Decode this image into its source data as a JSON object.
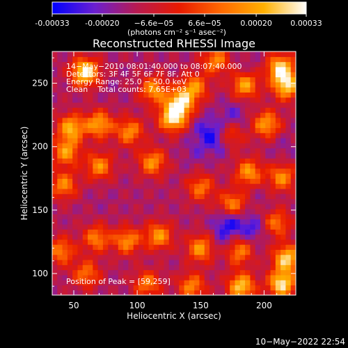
{
  "colorbar": {
    "tick_labels": [
      "-0.00033",
      "-0.00020",
      "−6.6e−05",
      "6.6e−05",
      "0.00020",
      "0.00033"
    ],
    "tick_values": [
      -0.00033,
      -0.0002,
      -6.6e-05,
      6.6e-05,
      0.0002,
      0.00033
    ],
    "range": [
      -0.00033,
      0.00033
    ],
    "units_label": "(photons cm⁻² s⁻¹ asec⁻²)",
    "colors": [
      "#0000ff",
      "#6a1fd0",
      "#b81a50",
      "#e81a00",
      "#ff6a00",
      "#ffb000",
      "#ffffff"
    ]
  },
  "chart_data": {
    "type": "heatmap",
    "title": "Reconstructed RHESSI Image",
    "xlabel": "Heliocentric X (arcsec)",
    "ylabel": "Heliocentric Y (arcsec)",
    "xlim": [
      33,
      225
    ],
    "ylim": [
      83,
      275
    ],
    "x_ticks": [
      50,
      100,
      150,
      200
    ],
    "y_ticks": [
      100,
      150,
      200,
      250
    ],
    "annotations": [
      "14−May−2010 08:01:40.000 to 08:07:40.000",
      "Detectors: 3F 4F 5F 6F 7F 8F, Att 0",
      "Energy Range: 25.0 − 50.0 keV",
      "Clean    Total counts: 7.65E+03"
    ],
    "peak_label": "Position of Peak = [59,259]",
    "peak": [
      59,
      259
    ],
    "hotspots": [
      {
        "x": 59,
        "y": 259,
        "v": 0.00033
      },
      {
        "x": 128,
        "y": 223,
        "v": 0.0003
      },
      {
        "x": 134,
        "y": 235,
        "v": 0.00026
      },
      {
        "x": 113,
        "y": 245,
        "v": 0.00018
      },
      {
        "x": 145,
        "y": 247,
        "v": 0.00016
      },
      {
        "x": 185,
        "y": 249,
        "v": 0.0002
      },
      {
        "x": 213,
        "y": 262,
        "v": 0.00028
      },
      {
        "x": 218,
        "y": 248,
        "v": 0.00025
      },
      {
        "x": 162,
        "y": 268,
        "v": 0.00015
      },
      {
        "x": 48,
        "y": 215,
        "v": 0.00022
      },
      {
        "x": 70,
        "y": 218,
        "v": 0.0002
      },
      {
        "x": 94,
        "y": 212,
        "v": 0.00016
      },
      {
        "x": 44,
        "y": 196,
        "v": 0.00018
      },
      {
        "x": 202,
        "y": 218,
        "v": 0.00019
      },
      {
        "x": 172,
        "y": 208,
        "v": 0.00014
      },
      {
        "x": 112,
        "y": 188,
        "v": 0.00017
      },
      {
        "x": 70,
        "y": 185,
        "v": 0.00016
      },
      {
        "x": 42,
        "y": 170,
        "v": 0.00015
      },
      {
        "x": 188,
        "y": 180,
        "v": 0.00018
      },
      {
        "x": 214,
        "y": 176,
        "v": 0.00016
      },
      {
        "x": 150,
        "y": 168,
        "v": 0.00012
      },
      {
        "x": 175,
        "y": 155,
        "v": 0.00015
      },
      {
        "x": 210,
        "y": 140,
        "v": 0.00012
      },
      {
        "x": 117,
        "y": 130,
        "v": 0.00018
      },
      {
        "x": 92,
        "y": 126,
        "v": 0.00016
      },
      {
        "x": 68,
        "y": 128,
        "v": 0.00014
      },
      {
        "x": 150,
        "y": 120,
        "v": 0.00018
      },
      {
        "x": 180,
        "y": 118,
        "v": 0.00015
      },
      {
        "x": 218,
        "y": 112,
        "v": 0.00027
      },
      {
        "x": 214,
        "y": 92,
        "v": 0.0003
      },
      {
        "x": 182,
        "y": 90,
        "v": 0.00026
      },
      {
        "x": 143,
        "y": 90,
        "v": 0.00015
      },
      {
        "x": 108,
        "y": 92,
        "v": 0.00013
      },
      {
        "x": 60,
        "y": 100,
        "v": 0.00012
      },
      {
        "x": 40,
        "y": 118,
        "v": 0.00014
      }
    ],
    "coldspots": [
      {
        "x": 166,
        "y": 205,
        "v": -0.00032
      },
      {
        "x": 155,
        "y": 213,
        "v": -0.00026
      },
      {
        "x": 175,
        "y": 225,
        "v": -0.00022
      },
      {
        "x": 146,
        "y": 196,
        "v": -0.00018
      },
      {
        "x": 172,
        "y": 140,
        "v": -0.0003
      },
      {
        "x": 190,
        "y": 136,
        "v": -0.00026
      },
      {
        "x": 168,
        "y": 125,
        "v": -0.0002
      },
      {
        "x": 72,
        "y": 158,
        "v": -0.00014
      },
      {
        "x": 195,
        "y": 160,
        "v": -0.00014
      },
      {
        "x": 215,
        "y": 200,
        "v": -0.00016
      },
      {
        "x": 185,
        "y": 263,
        "v": -0.00016
      },
      {
        "x": 80,
        "y": 245,
        "v": -0.00014
      }
    ],
    "background": -0.00012
  },
  "footer": {
    "timestamp": "10−May−2022 22:54"
  }
}
